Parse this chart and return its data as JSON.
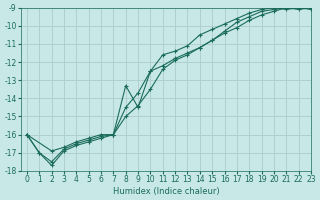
{
  "xlabel": "Humidex (Indice chaleur)",
  "bg_color": "#c8e8e8",
  "grid_color": "#b0d0d0",
  "line_color": "#1a6b5a",
  "xlim": [
    -0.5,
    23
  ],
  "ylim": [
    -18,
    -9
  ],
  "xticks": [
    0,
    1,
    2,
    3,
    4,
    5,
    6,
    7,
    8,
    9,
    10,
    11,
    12,
    13,
    14,
    15,
    16,
    17,
    18,
    19,
    20,
    21,
    22,
    23
  ],
  "yticks": [
    -18,
    -17,
    -16,
    -15,
    -14,
    -13,
    -12,
    -11,
    -10,
    -9
  ],
  "s1x": [
    0,
    1,
    2,
    3,
    4,
    5,
    6,
    7,
    8,
    9,
    10,
    11,
    12,
    13,
    14,
    15,
    16,
    17,
    18,
    19,
    20,
    21,
    22,
    23
  ],
  "s1y": [
    -16.0,
    -17.0,
    -17.5,
    -16.8,
    -16.5,
    -16.3,
    -16.1,
    -16.0,
    -13.3,
    -14.5,
    -12.5,
    -12.2,
    -11.8,
    -11.5,
    -11.2,
    -10.8,
    -10.3,
    -9.8,
    -9.5,
    -9.2,
    -9.1,
    -9.0,
    -9.1,
    -9.0
  ],
  "s2x": [
    0,
    1,
    2,
    3,
    4,
    5,
    6,
    7,
    8,
    9,
    10,
    11,
    12,
    13,
    14,
    15,
    16,
    17,
    18,
    19,
    20,
    21,
    22,
    23
  ],
  "s2y": [
    -16.0,
    -17.0,
    -17.7,
    -16.9,
    -16.6,
    -16.4,
    -16.2,
    -16.0,
    -15.0,
    -14.4,
    -13.5,
    -12.4,
    -11.9,
    -11.6,
    -11.2,
    -10.8,
    -10.4,
    -10.1,
    -9.7,
    -9.4,
    -9.2,
    -9.0,
    -9.0,
    -9.1
  ],
  "s3x": [
    0,
    2,
    3,
    4,
    5,
    6,
    7,
    8,
    9,
    10,
    11,
    12,
    13,
    14,
    15,
    16,
    17,
    18,
    19,
    20,
    21,
    22,
    23
  ],
  "s3y": [
    -16.0,
    -16.9,
    -16.7,
    -16.4,
    -16.2,
    -16.0,
    -16.0,
    -14.5,
    -13.7,
    -12.5,
    -11.6,
    -11.4,
    -11.1,
    -10.5,
    -10.2,
    -9.9,
    -9.6,
    -9.3,
    -9.1,
    -9.0,
    -9.1,
    -9.0,
    -9.0
  ]
}
